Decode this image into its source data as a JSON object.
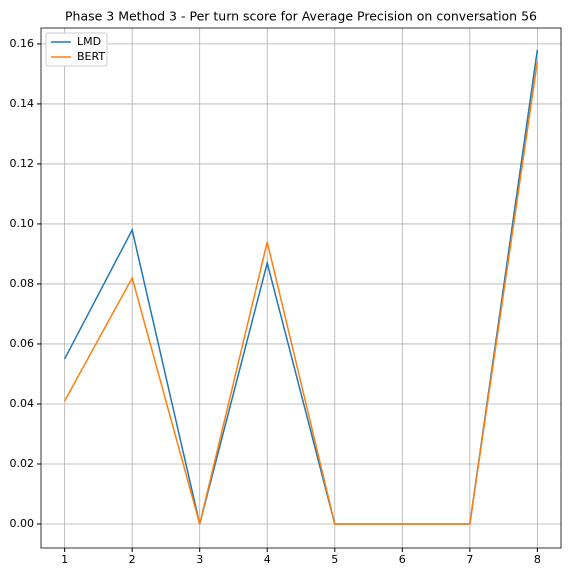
{
  "chart_data": {
    "type": "line",
    "title": "Phase 3 Method 3 - Per turn score for Average Precision on conversation 56",
    "x": [
      1,
      2,
      3,
      4,
      5,
      6,
      7,
      8
    ],
    "series": [
      {
        "name": "LMD",
        "color": "#1f77b4",
        "values": [
          0.055,
          0.098,
          0,
          0.087,
          0,
          0,
          0,
          0.158
        ]
      },
      {
        "name": "BERT",
        "color": "#ff7f0e",
        "values": [
          0.041,
          0.082,
          0,
          0.094,
          0,
          0,
          0,
          0.154
        ]
      }
    ],
    "xlim": [
      0.65,
      8.35
    ],
    "xticks": [
      1,
      2,
      3,
      4,
      5,
      6,
      7,
      8
    ],
    "ylim": [
      -0.008,
      0.1653
    ],
    "yticks": [
      {
        "value": 0,
        "label": "0.00"
      },
      {
        "value": 0.02,
        "label": "0.02"
      },
      {
        "value": 0.04,
        "label": "0.04"
      },
      {
        "value": 0.06,
        "label": "0.06"
      },
      {
        "value": 0.08,
        "label": "0.08"
      },
      {
        "value": 0.1,
        "label": "0.10"
      },
      {
        "value": 0.12,
        "label": "0.12"
      },
      {
        "value": 0.14,
        "label": "0.14"
      },
      {
        "value": 0.16,
        "label": "0.16"
      }
    ],
    "grid": true,
    "legend": "upper-left"
  }
}
